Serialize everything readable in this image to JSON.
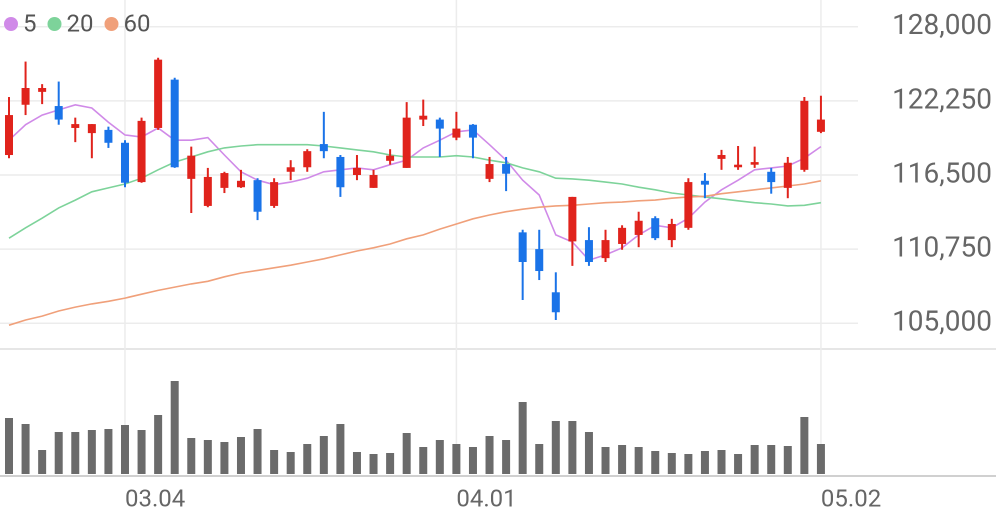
{
  "chart_data": {
    "type": "candlestick",
    "legend": "top-left",
    "grid": true,
    "up_color": "#e0231c",
    "down_color": "#1a73e8",
    "volume_color": "#6b6b6b",
    "ylim": [
      103000,
      130000
    ],
    "yticks": [
      {
        "value": 105000,
        "label": "105,000"
      },
      {
        "value": 110750,
        "label": "110,750"
      },
      {
        "value": 116500,
        "label": "116,500"
      },
      {
        "value": 122250,
        "label": "122,250"
      },
      {
        "value": 128000,
        "label": "128,000"
      }
    ],
    "categories": [
      null,
      null,
      null,
      null,
      null,
      null,
      null,
      "03.04",
      null,
      null,
      null,
      null,
      null,
      null,
      null,
      null,
      null,
      null,
      null,
      null,
      null,
      null,
      null,
      null,
      null,
      null,
      null,
      "04.01",
      null,
      null,
      null,
      null,
      null,
      null,
      null,
      null,
      null,
      null,
      null,
      null,
      null,
      null,
      null,
      null,
      null,
      null,
      null,
      null,
      null,
      "05.02"
    ],
    "open": [
      118050,
      121950,
      122950,
      121850,
      120150,
      119750,
      120000,
      119000,
      115950,
      120150,
      123900,
      116200,
      114100,
      115500,
      115550,
      116100,
      114100,
      116750,
      117100,
      118900,
      117900,
      116500,
      115500,
      117600,
      117050,
      120800,
      120800,
      119400,
      120400,
      116200,
      117350,
      112050,
      110750,
      107400,
      111350,
      111450,
      110050,
      111150,
      111850,
      113150,
      111450,
      112400,
      116050,
      117750,
      117100,
      117300,
      116750,
      115500,
      116900,
      119850
    ],
    "high": [
      122550,
      125300,
      123550,
      123750,
      120950,
      120450,
      120250,
      119200,
      120950,
      125600,
      124050,
      118700,
      117050,
      116750,
      116900,
      116250,
      116250,
      117650,
      118500,
      121400,
      118050,
      118050,
      116900,
      118500,
      122150,
      122350,
      120950,
      121400,
      120450,
      117900,
      117900,
      112250,
      112250,
      108950,
      114800,
      112450,
      112250,
      112600,
      113650,
      113300,
      113100,
      116250,
      116650,
      118450,
      118750,
      118700,
      117050,
      117900,
      122550,
      122650
    ],
    "low": [
      117800,
      121150,
      122000,
      120400,
      119050,
      117800,
      118600,
      115550,
      115900,
      120000,
      117050,
      113550,
      114000,
      115100,
      115500,
      113000,
      113950,
      116100,
      116750,
      117800,
      114800,
      116100,
      115500,
      117300,
      117050,
      120300,
      117900,
      119200,
      117800,
      115950,
      115250,
      106800,
      108350,
      105250,
      109450,
      109450,
      109750,
      110700,
      110900,
      111450,
      110900,
      112250,
      114700,
      116900,
      116900,
      117050,
      115050,
      114700,
      116750,
      119750
    ],
    "close": [
      121150,
      123250,
      123250,
      120800,
      120450,
      120450,
      119000,
      115900,
      120700,
      125450,
      117100,
      118000,
      116350,
      116650,
      116050,
      113650,
      115950,
      117100,
      118350,
      118350,
      115550,
      117050,
      116500,
      118000,
      120950,
      121100,
      120100,
      120100,
      119400,
      117350,
      116600,
      109750,
      109050,
      105850,
      114800,
      109750,
      111450,
      112400,
      112950,
      111600,
      112700,
      115950,
      115750,
      118050,
      117300,
      117500,
      115950,
      117450,
      122250,
      120800
    ],
    "series": [
      {
        "name": "5",
        "color": "#d08ae8",
        "values": [
          119200,
          120400,
          121150,
          121550,
          121950,
          121700,
          120600,
          119600,
          119450,
          120150,
          119200,
          119200,
          119400,
          118050,
          116750,
          116100,
          115750,
          115950,
          116250,
          116750,
          116900,
          117050,
          116900,
          117300,
          117650,
          118600,
          119200,
          119850,
          120000,
          118850,
          117650,
          116100,
          114950,
          111850,
          111300,
          109900,
          110300,
          110850,
          111850,
          112600,
          112400,
          113150,
          114400,
          115350,
          116100,
          116900,
          117050,
          117200,
          117800,
          118700
        ]
      },
      {
        "name": "20",
        "color": "#7dd39a",
        "values": [
          111600,
          112400,
          113150,
          113950,
          114550,
          115200,
          115500,
          115800,
          116250,
          116900,
          117500,
          117900,
          118300,
          118600,
          118750,
          118850,
          118850,
          118850,
          118850,
          118750,
          118600,
          118450,
          118300,
          118050,
          117900,
          117900,
          117900,
          118000,
          117900,
          117650,
          117450,
          117050,
          116750,
          116250,
          116200,
          116100,
          115950,
          115800,
          115550,
          115350,
          115100,
          114950,
          114800,
          114650,
          114500,
          114350,
          114250,
          114100,
          114150,
          114350
        ]
      },
      {
        "name": "60",
        "color": "#f0a07a",
        "values": [
          104850,
          105250,
          105550,
          105950,
          106250,
          106500,
          106700,
          106950,
          107250,
          107550,
          107800,
          108050,
          108250,
          108600,
          108900,
          109100,
          109300,
          109500,
          109750,
          110000,
          110300,
          110600,
          110850,
          111150,
          111550,
          111850,
          112300,
          112700,
          113100,
          113400,
          113650,
          113850,
          114000,
          114100,
          114150,
          114250,
          114350,
          114400,
          114500,
          114550,
          114700,
          114800,
          114850,
          115050,
          115200,
          115350,
          115500,
          115650,
          115800,
          116050
        ]
      }
    ],
    "volume": {
      "ylim": [
        0,
        125
      ],
      "values": [
        56,
        50,
        24,
        42,
        42,
        44,
        45,
        49,
        44,
        59,
        93,
        36,
        34,
        32,
        37,
        45,
        24,
        22,
        30,
        38,
        50,
        22,
        20,
        21,
        41,
        27,
        34,
        30,
        27,
        38,
        34,
        72,
        30,
        53,
        53,
        42,
        27,
        29,
        27,
        23,
        21,
        20,
        23,
        24,
        20,
        29,
        29,
        28,
        57,
        30
      ]
    }
  }
}
